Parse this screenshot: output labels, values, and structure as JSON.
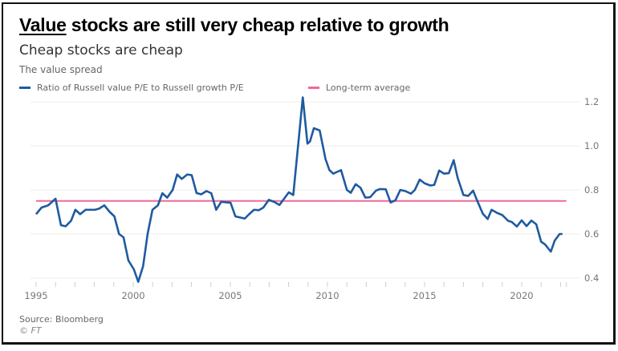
{
  "header": {
    "title_underlined": "Value",
    "title_rest": " stocks are still very cheap relative to growth",
    "subtitle": "Cheap stocks are cheap"
  },
  "footer": {
    "source": "Source: Bloomberg",
    "copyright": "© FT"
  },
  "chart_data": {
    "type": "line",
    "title": "The value spread",
    "xlabel": "",
    "ylabel": "",
    "xlim": [
      1995,
      2022.3
    ],
    "ylim": [
      0.4,
      1.2
    ],
    "x_ticks": [
      "1995",
      "2000",
      "2005",
      "2010",
      "2015",
      "2020"
    ],
    "y_ticks": [
      "0.4",
      "0.6",
      "0.8",
      "1.0",
      "1.2"
    ],
    "grid": true,
    "y_axis_side": "right",
    "legend_placement": "top-left",
    "series": [
      {
        "name": "Ratio of Russell value P/E to Russell growth P/E",
        "color": "#1f5aa0",
        "x": [
          1995.0,
          1995.28,
          1995.62,
          1996.0,
          1996.28,
          1996.52,
          1996.8,
          1997.02,
          1997.27,
          1997.55,
          1998.03,
          1998.24,
          1998.51,
          1998.79,
          1999.03,
          1999.27,
          1999.5,
          1999.75,
          2000.03,
          2000.26,
          2000.51,
          2000.74,
          2000.99,
          2001.27,
          2001.5,
          2001.75,
          2002.03,
          2002.26,
          2002.5,
          2002.78,
          2003.01,
          2003.26,
          2003.5,
          2003.77,
          2004.02,
          2004.27,
          2004.53,
          2004.77,
          2005.01,
          2005.26,
          2005.5,
          2005.74,
          2005.97,
          2006.22,
          2006.47,
          2006.7,
          2006.98,
          2007.25,
          2007.53,
          2007.76,
          2008.01,
          2008.24,
          2008.73,
          2008.97,
          2009.1,
          2009.3,
          2009.6,
          2009.9,
          2010.1,
          2010.3,
          2010.7,
          2011.0,
          2011.2,
          2011.45,
          2011.7,
          2011.95,
          2012.2,
          2012.5,
          2012.7,
          2013.0,
          2013.25,
          2013.5,
          2013.75,
          2014.0,
          2014.3,
          2014.5,
          2014.75,
          2015.0,
          2015.3,
          2015.5,
          2015.75,
          2016.0,
          2016.25,
          2016.5,
          2016.7,
          2017.0,
          2017.25,
          2017.5,
          2017.7,
          2018.0,
          2018.25,
          2018.45,
          2018.75,
          2019.0,
          2019.3,
          2019.5,
          2019.75,
          2020.0,
          2020.25,
          2020.5,
          2020.75,
          2021.0,
          2021.2,
          2021.5,
          2021.7,
          2021.95,
          2022.1
        ],
        "values": [
          0.69,
          0.72,
          0.73,
          0.76,
          0.64,
          0.635,
          0.66,
          0.71,
          0.69,
          0.71,
          0.71,
          0.715,
          0.73,
          0.7,
          0.68,
          0.6,
          0.585,
          0.48,
          0.44,
          0.383,
          0.455,
          0.6,
          0.71,
          0.73,
          0.785,
          0.765,
          0.8,
          0.87,
          0.85,
          0.87,
          0.867,
          0.786,
          0.78,
          0.795,
          0.785,
          0.71,
          0.746,
          0.744,
          0.742,
          0.68,
          0.675,
          0.67,
          0.69,
          0.71,
          0.708,
          0.72,
          0.755,
          0.746,
          0.732,
          0.759,
          0.789,
          0.777,
          1.22,
          1.01,
          1.02,
          1.08,
          1.07,
          0.94,
          0.89,
          0.874,
          0.89,
          0.8,
          0.787,
          0.826,
          0.81,
          0.765,
          0.767,
          0.797,
          0.804,
          0.803,
          0.743,
          0.753,
          0.8,
          0.795,
          0.783,
          0.8,
          0.847,
          0.83,
          0.82,
          0.823,
          0.888,
          0.874,
          0.876,
          0.935,
          0.856,
          0.777,
          0.773,
          0.797,
          0.753,
          0.692,
          0.668,
          0.71,
          0.695,
          0.686,
          0.66,
          0.654,
          0.634,
          0.662,
          0.636,
          0.661,
          0.644,
          0.565,
          0.553,
          0.52,
          0.57,
          0.6,
          0.6
        ]
      },
      {
        "name": "Long-term average",
        "color": "#f0699a",
        "x": [
          1995,
          2022.3
        ],
        "values": [
          0.75,
          0.75
        ]
      }
    ]
  }
}
